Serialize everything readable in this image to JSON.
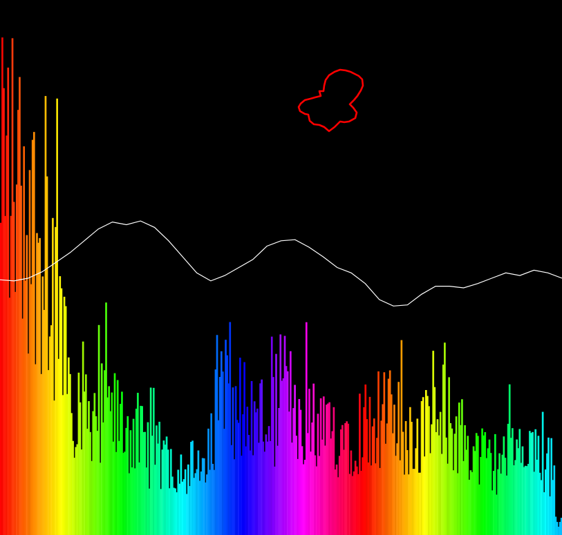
{
  "visualizer": {
    "background_color": "#000000",
    "spectrum": {
      "description_type": "frequency-bars",
      "bar_count": 390,
      "color_scheme": "rainbow-hue-cycle",
      "hue_cycles": 1.55,
      "levels_normalized": [
        0.86,
        0.84,
        0.8,
        0.76,
        0.72,
        0.68,
        0.64,
        0.58,
        0.52,
        0.46,
        0.32,
        0.31,
        0.3,
        0.29,
        0.28,
        0.27,
        0.26,
        0.25,
        0.24,
        0.23,
        0.2,
        0.19,
        0.18,
        0.17,
        0.17,
        0.16,
        0.16,
        0.15,
        0.14,
        0.13,
        0.27,
        0.3,
        0.32,
        0.31,
        0.29,
        0.27,
        0.26,
        0.26,
        0.27,
        0.29,
        0.32,
        0.3,
        0.28,
        0.26,
        0.24,
        0.22,
        0.22,
        0.23,
        0.23,
        0.24,
        0.24,
        0.25,
        0.26,
        0.27,
        0.26,
        0.26,
        0.25,
        0.24,
        0.23,
        0.23,
        0.23,
        0.24,
        0.25,
        0.25,
        0.24,
        0.22,
        0.2,
        0.18,
        0.17,
        0.16,
        0.17,
        0.18,
        0.18,
        0.18,
        0.17,
        0.17,
        0.16,
        0.16,
        0.15,
        0.14
      ]
    },
    "waveform": {
      "line_color": "#ffffff",
      "points_y_fraction": [
        0.523,
        0.525,
        0.52,
        0.508,
        0.49,
        0.472,
        0.45,
        0.428,
        0.415,
        0.42,
        0.413,
        0.425,
        0.45,
        0.48,
        0.51,
        0.525,
        0.515,
        0.5,
        0.485,
        0.46,
        0.45,
        0.448,
        0.462,
        0.48,
        0.5,
        0.51,
        0.53,
        0.56,
        0.572,
        0.57,
        0.55,
        0.535,
        0.535,
        0.538,
        0.53,
        0.52,
        0.51,
        0.515,
        0.505,
        0.51,
        0.52
      ]
    },
    "blob": {
      "stroke_color": "#ff0000"
    }
  }
}
